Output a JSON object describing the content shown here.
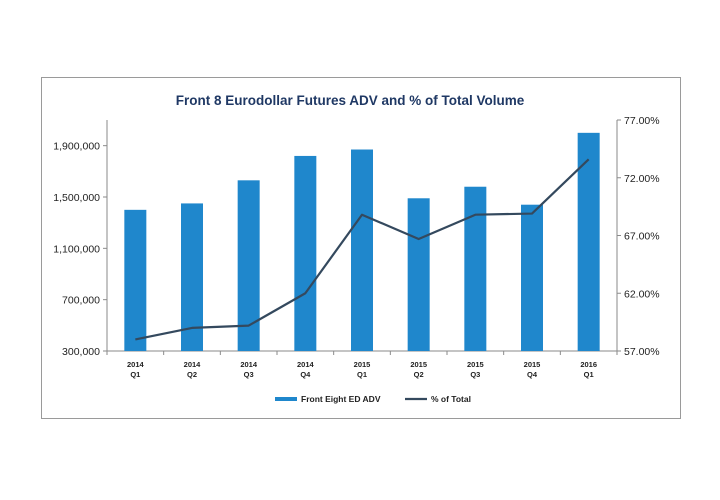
{
  "chart_data": {
    "type": "bar+line",
    "title": "Front 8 Eurodollar Futures ADV and % of Total Volume",
    "categories": [
      [
        "2014",
        "Q1"
      ],
      [
        "2014",
        "Q2"
      ],
      [
        "2014",
        "Q3"
      ],
      [
        "2014",
        "Q4"
      ],
      [
        "2015",
        "Q1"
      ],
      [
        "2015",
        "Q2"
      ],
      [
        "2015",
        "Q3"
      ],
      [
        "2015",
        "Q4"
      ],
      [
        "2016",
        "Q1"
      ]
    ],
    "series": [
      {
        "name": "Front Eight ED ADV",
        "type": "bar",
        "axis": "left",
        "color": "#1f87cc",
        "values": [
          1400000,
          1450000,
          1630000,
          1820000,
          1870000,
          1490000,
          1580000,
          1440000,
          2000000
        ]
      },
      {
        "name": "% of Total",
        "type": "line",
        "axis": "right",
        "color": "#34495e",
        "values": [
          58.0,
          59.0,
          59.2,
          62.0,
          68.8,
          66.7,
          68.8,
          68.9,
          73.6
        ]
      }
    ],
    "left_axis": {
      "ylim": [
        300000,
        2100000
      ],
      "ticks": [
        300000,
        700000,
        1100000,
        1500000,
        1900000
      ],
      "tick_labels": [
        "300,000",
        "700,000",
        "1,100,000",
        "1,500,000",
        "1,900,000"
      ]
    },
    "right_axis": {
      "ylim": [
        57.0,
        77.0
      ],
      "ticks": [
        57.0,
        62.0,
        67.0,
        72.0,
        77.0
      ],
      "tick_labels": [
        "57.00%",
        "62.00%",
        "67.00%",
        "72.00%",
        "77.00%"
      ]
    },
    "legend": {
      "placement": "bottom-center",
      "entries": [
        "Front Eight ED ADV",
        "% of Total"
      ]
    },
    "grid": false
  }
}
